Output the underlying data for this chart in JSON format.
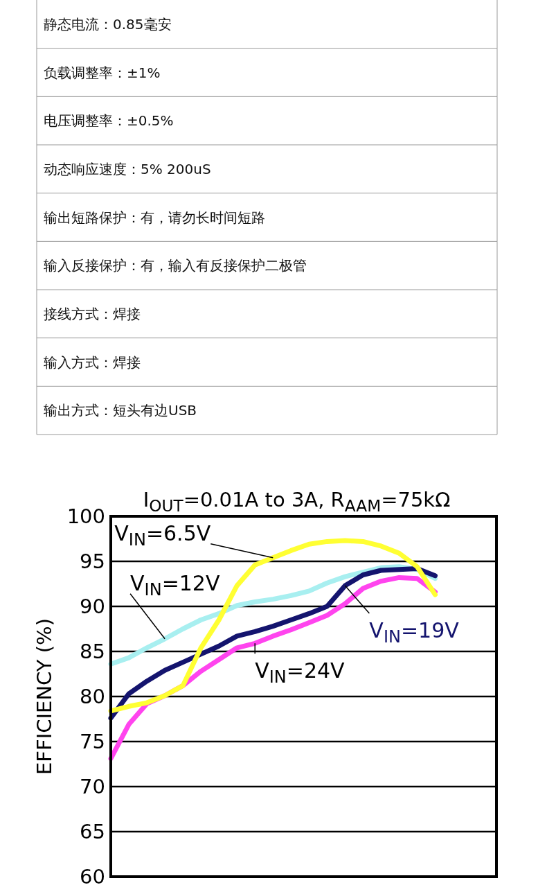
{
  "chart_data": [
    {
      "type": "other",
      "annotations": [
        "静态电流：0.85毫安",
        "负载调整率：±1%",
        "电压调整率：±0.5%",
        "动态响应速度：5% 200uS",
        "输出短路保护：有，请勿长时间短路",
        "输入反接保护：有，输入有反接保护二极管",
        "接线方式：焊接",
        "输入方式：焊接",
        "输出方式：短头有边USB"
      ]
    },
    {
      "type": "line",
      "title": "I$_{OUT}$=0.01A to 3A, R$_{AAM}$=75kΩ",
      "ylabel": "EFFICIENCY (%)",
      "categories": [
        null,
        null,
        null,
        null,
        null,
        null,
        null,
        null,
        null,
        null,
        null,
        null,
        null,
        null,
        null,
        null,
        null,
        null,
        null,
        null,
        null,
        null
      ],
      "ylim": [
        60,
        100
      ],
      "yticks": [
        60,
        65,
        70,
        75,
        80,
        85,
        90,
        95,
        100
      ],
      "grid": "y",
      "series": [
        {
          "name": "V$_{IN}$=12V",
          "color": "#a8eff0",
          "values": [
            83.6,
            84.3,
            85.4,
            86.4,
            87.5,
            88.5,
            89.2,
            90.1,
            90.5,
            90.8,
            91.2,
            91.7,
            92.6,
            93.3,
            93.8,
            94.3,
            94.4,
            94.1,
            93.1,
            null,
            null,
            null
          ]
        },
        {
          "name": "V$_{IN}$=19V",
          "color": "#14146e",
          "values": [
            77.6,
            80.3,
            81.7,
            82.9,
            83.8,
            84.7,
            85.6,
            86.7,
            87.2,
            87.8,
            88.5,
            89.2,
            90.0,
            92.3,
            93.5,
            94.0,
            94.1,
            94.2,
            93.4,
            null,
            null,
            null
          ]
        },
        {
          "name": "V$_{IN}$=24V",
          "color": "#ff44ee",
          "values": [
            73.1,
            76.9,
            79.2,
            80.1,
            81.2,
            82.8,
            84.1,
            85.4,
            85.9,
            86.7,
            87.4,
            88.2,
            89.0,
            90.3,
            92.0,
            92.8,
            93.2,
            93.1,
            91.6,
            null,
            null,
            null
          ]
        },
        {
          "name": "V$_{IN}$=6.5V",
          "color": "#ffff33",
          "values": [
            78.4,
            78.9,
            79.3,
            80.1,
            81.2,
            85.4,
            88.5,
            92.3,
            94.6,
            95.4,
            96.2,
            96.9,
            97.2,
            97.3,
            97.2,
            96.7,
            95.9,
            94.4,
            91.3,
            null,
            null,
            null
          ]
        }
      ]
    }
  ]
}
